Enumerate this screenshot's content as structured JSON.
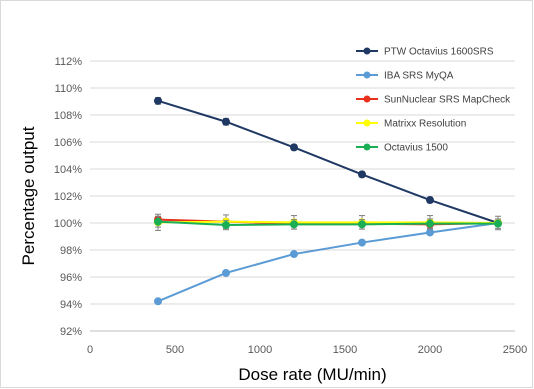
{
  "chart_data": {
    "type": "line",
    "title": "",
    "xlabel": "Dose rate (MU/min)",
    "ylabel": "Percentage output",
    "xlim": [
      0,
      2500
    ],
    "ylim": [
      92,
      112
    ],
    "x_ticks": [
      0,
      500,
      1000,
      1500,
      2000,
      2500
    ],
    "y_ticks": [
      92,
      94,
      96,
      98,
      100,
      102,
      104,
      106,
      108,
      110,
      112
    ],
    "x_tick_labels": [
      "0",
      "500",
      "1000",
      "1500",
      "2000",
      "2500"
    ],
    "y_tick_labels": [
      "92%",
      "94%",
      "96%",
      "98%",
      "100%",
      "102%",
      "104%",
      "106%",
      "108%",
      "110%",
      "112%"
    ],
    "grid": "horizontal",
    "legend_position": "top-right",
    "x": [
      400,
      800,
      1200,
      1600,
      2000,
      2400
    ],
    "series": [
      {
        "name": "PTW Octavius 1600SRS",
        "color": "#1f3864",
        "values": [
          109.05,
          107.5,
          105.6,
          103.6,
          101.7,
          100.0
        ],
        "err": [
          0.25,
          0.25,
          0.2,
          0.2,
          0.2,
          0.2
        ]
      },
      {
        "name": "IBA SRS MyQA",
        "color": "#5b9bd5",
        "values": [
          94.2,
          96.3,
          97.7,
          98.55,
          99.3,
          100.0
        ],
        "err": [
          0.15,
          0.15,
          0.15,
          0.15,
          0.15,
          0.15
        ]
      },
      {
        "name": "SunNuclear SRS MapCheck",
        "color": "#e8301c",
        "values": [
          100.25,
          100.1,
          99.95,
          99.95,
          99.9,
          100.0
        ],
        "err": [
          0.2,
          0.2,
          0.2,
          0.2,
          0.2,
          0.2
        ]
      },
      {
        "name": "Matrixx Resolution",
        "color": "#ffff00",
        "values": [
          100.05,
          100.1,
          100.05,
          100.05,
          100.05,
          100.0
        ],
        "err": [
          0.6,
          0.5,
          0.5,
          0.5,
          0.5,
          0.5
        ]
      },
      {
        "name": "Octavius 1500",
        "color": "#1aaf54",
        "values": [
          100.1,
          99.85,
          99.9,
          99.9,
          99.95,
          99.95
        ],
        "err": [
          0.4,
          0.35,
          0.35,
          0.35,
          0.35,
          0.35
        ]
      }
    ]
  }
}
